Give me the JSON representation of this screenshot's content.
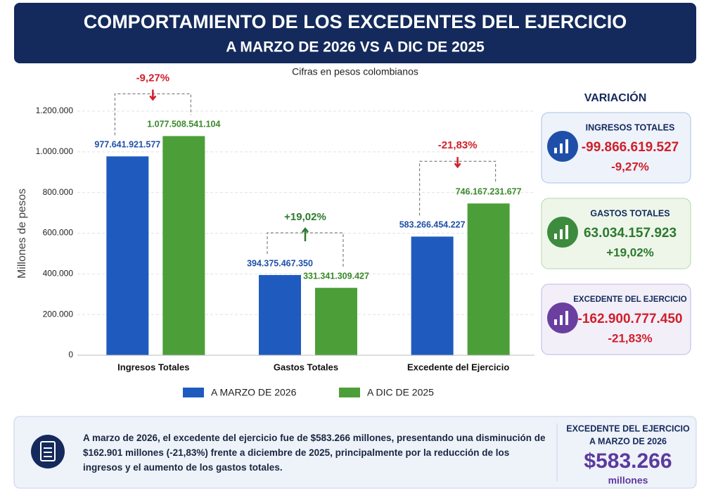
{
  "header": {
    "title": "COMPORTAMIENTO DE LOS EXCEDENTES DEL EJERCICIO",
    "subtitle": "A MARZO DE 2026 VS A DIC DE 2025"
  },
  "chart_data": {
    "type": "bar",
    "subtitle": "Cifras en pesos colombianos",
    "y_label": "Millones de pesos",
    "categories": [
      "Ingresos Totales",
      "Gastos Totales",
      "Excedente del Ejercicio"
    ],
    "series": [
      {
        "name": "A MARZO DE 2026",
        "color": "#1f5bbf",
        "label_color": "#1f4fa8",
        "values": [
          977641.921577,
          394375.46735,
          583266.454227
        ],
        "value_labels": [
          "977.641.921.577",
          "394.375.467.350",
          "583.266.454.227"
        ]
      },
      {
        "name": "A DIC DE 2025",
        "color": "#4c9f38",
        "label_color": "#3a8a2a",
        "values": [
          1077508.541104,
          331341.309427,
          746167.231677
        ],
        "value_labels": [
          "1.077.508.541.104",
          "331.341.309.427",
          "746.167.231.677"
        ]
      }
    ],
    "ylim": [
      0,
      1200000
    ],
    "yticks": [
      0,
      {
        "value": 200000,
        "label": "200.000"
      },
      {
        "value": 400000,
        "label": "400.000"
      },
      {
        "value": 600000,
        "label": "600.000"
      },
      {
        "value": 800000,
        "label": "800.000"
      },
      {
        "value": 1000000,
        "label": "1.000.000"
      },
      {
        "value": 1200000,
        "label": "1.200.000"
      }
    ],
    "grid": true,
    "annotations": [
      {
        "text": "-9,27%",
        "direction": "down",
        "color": "#d0202a"
      },
      {
        "text": "+19,02%",
        "direction": "up",
        "color": "#2c7a2c"
      },
      {
        "text": "-21,83%",
        "direction": "down",
        "color": "#d0202a"
      }
    ]
  },
  "variation": {
    "title": "VARIACIÓN",
    "cards": [
      {
        "title": "INGRESOS TOTALES",
        "value": "-99.866.619.527",
        "percent": "-9,27%",
        "color": "#d0202a"
      },
      {
        "title": "GASTOS TOTALES",
        "value": "63.034.157.923",
        "percent": "+19,02%",
        "color": "#2c7a2c"
      },
      {
        "title": "EXCEDENTE DEL EJERCICIO",
        "value": "-162.900.777.450",
        "percent": "-21,83%",
        "color": "#d0202a"
      }
    ]
  },
  "footer": {
    "text": [
      {
        "text": "A marzo de 2026, el excedente del ejercicio fue de ",
        "bold": false
      },
      {
        "text": "$583.266 millones",
        "bold": true
      },
      {
        "text": ", presentando una disminución de $162.901 millones (-21,83%) frente a diciembre de 2025, principalmente por la reducción de los ingresos y el aumento de los gastos totales.",
        "bold": false
      }
    ],
    "highlight": {
      "title": "EXCEDENTE DEL EJERCICIO",
      "subtitle": "A MARZO DE 2026",
      "value": "$583.266",
      "unit": "millones"
    }
  }
}
